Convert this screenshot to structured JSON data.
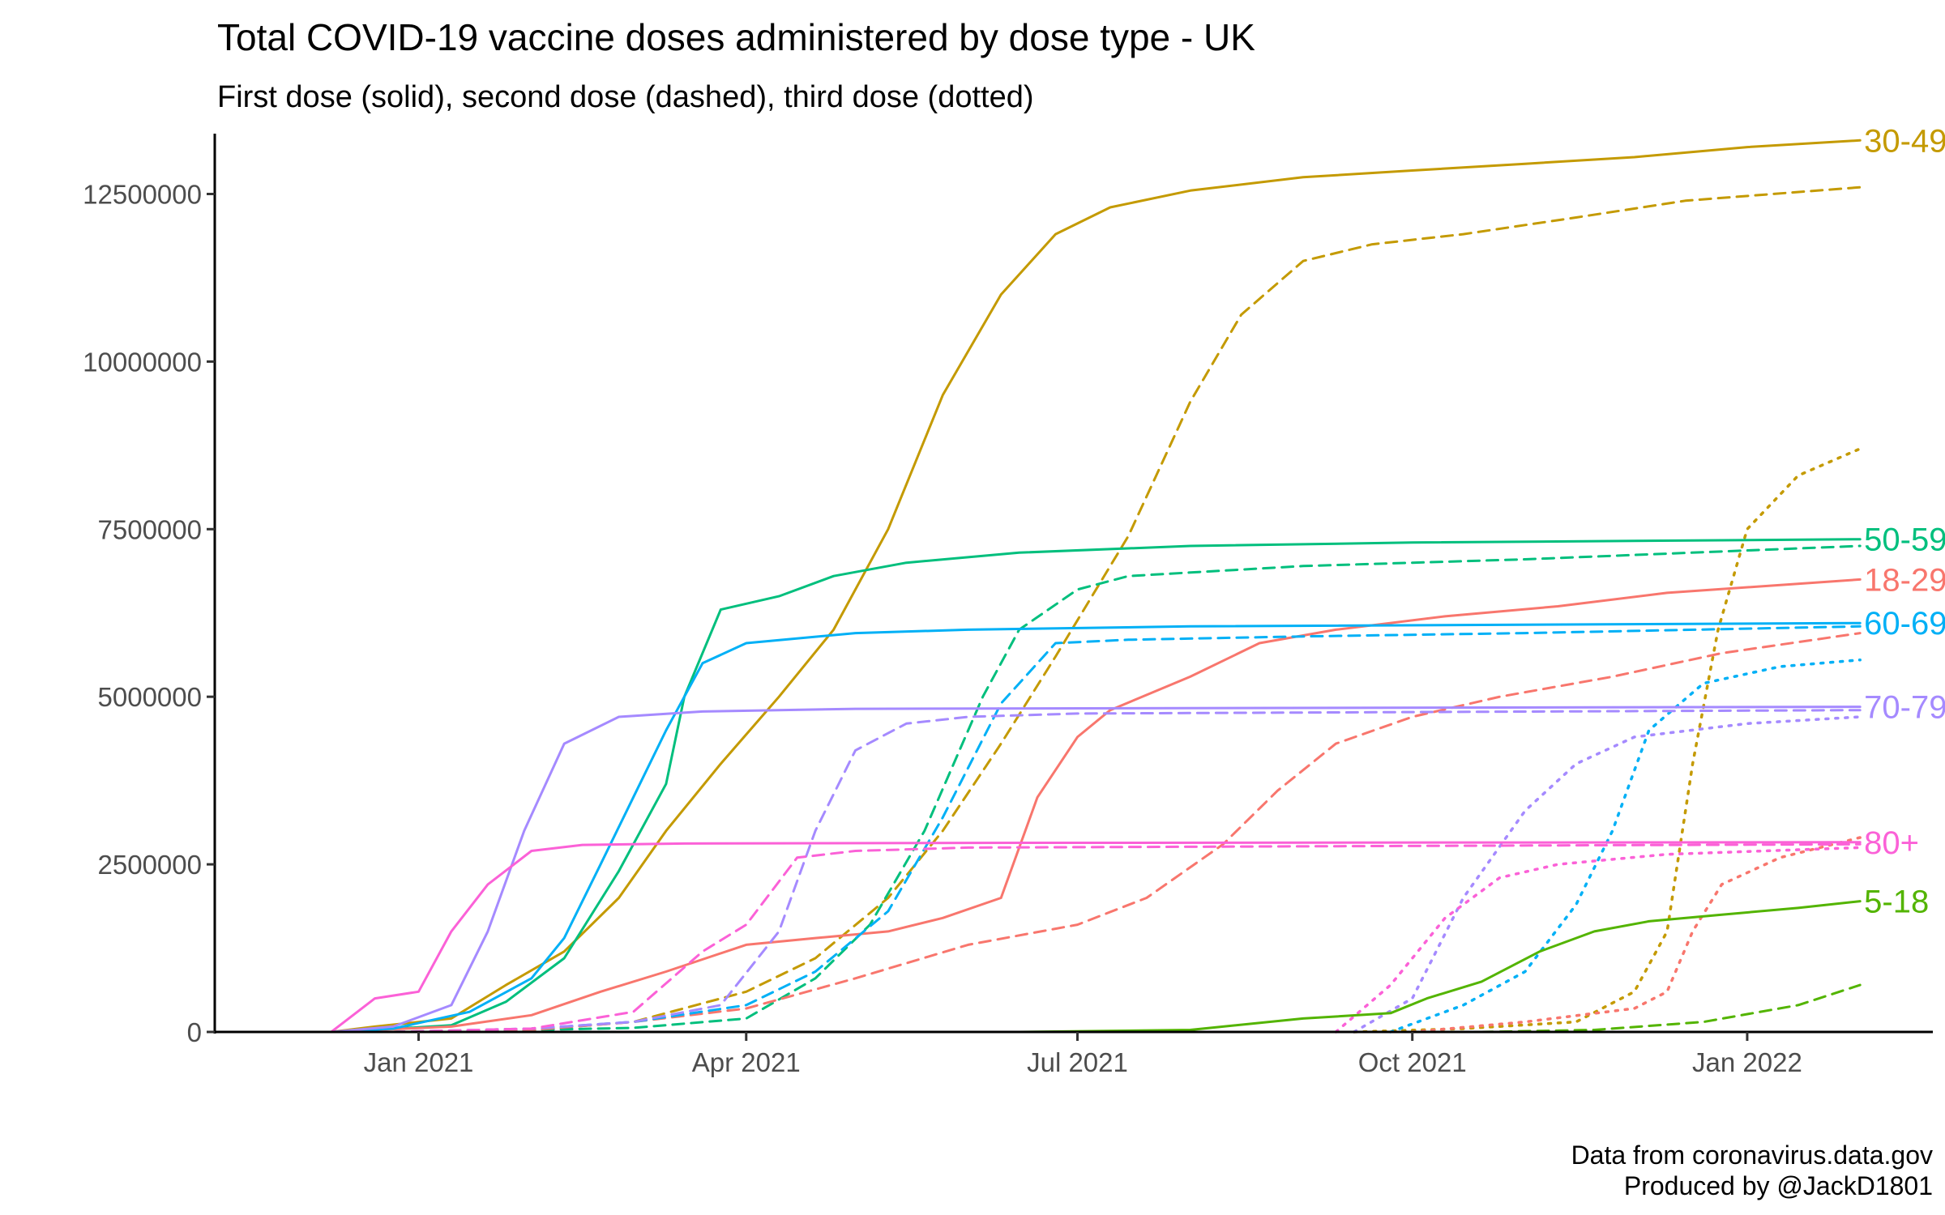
{
  "chart_data": {
    "type": "line",
    "title": "Total COVID-19 vaccine doses administered by dose type - UK",
    "subtitle": "First dose (solid), second dose (dashed), third dose (dotted)",
    "caption": [
      "Data from coronavirus.data.gov",
      "Produced by @JackD1801"
    ],
    "xlim": [
      "2020-11-06",
      "2022-02-21"
    ],
    "ylim": [
      0,
      13400000
    ],
    "x_ticks": [
      {
        "date": "2021-01-01",
        "label": "Jan 2021"
      },
      {
        "date": "2021-04-01",
        "label": "Apr 2021"
      },
      {
        "date": "2021-07-01",
        "label": "Jul 2021"
      },
      {
        "date": "2021-10-01",
        "label": "Oct 2021"
      },
      {
        "date": "2022-01-01",
        "label": "Jan 2022"
      }
    ],
    "y_ticks": [
      0,
      2500000,
      5000000,
      7500000,
      10000000,
      12500000
    ],
    "y_tick_labels": [
      "0",
      "2500000",
      "5000000",
      "7500000",
      "10000000",
      "12500000"
    ],
    "grid": false,
    "legend": "none (series labelled at right end)",
    "groups": [
      {
        "label": "30-49",
        "color": "#C49A00",
        "first": [
          [
            "2020-12-08",
            0
          ],
          [
            "2020-12-20",
            80000
          ],
          [
            "2021-01-10",
            200000
          ],
          [
            "2021-01-25",
            700000
          ],
          [
            "2021-02-10",
            1200000
          ],
          [
            "2021-02-25",
            2000000
          ],
          [
            "2021-03-10",
            3000000
          ],
          [
            "2021-03-25",
            4000000
          ],
          [
            "2021-04-10",
            5000000
          ],
          [
            "2021-04-25",
            6000000
          ],
          [
            "2021-05-10",
            7500000
          ],
          [
            "2021-05-25",
            9500000
          ],
          [
            "2021-06-10",
            11000000
          ],
          [
            "2021-06-25",
            11900000
          ],
          [
            "2021-07-10",
            12300000
          ],
          [
            "2021-08-01",
            12550000
          ],
          [
            "2021-09-01",
            12750000
          ],
          [
            "2021-10-01",
            12850000
          ],
          [
            "2021-11-01",
            12950000
          ],
          [
            "2021-12-01",
            13050000
          ],
          [
            "2022-01-01",
            13200000
          ],
          [
            "2022-02-01",
            13300000
          ]
        ],
        "second": [
          [
            "2020-12-25",
            0
          ],
          [
            "2021-02-01",
            30000
          ],
          [
            "2021-03-01",
            150000
          ],
          [
            "2021-04-01",
            600000
          ],
          [
            "2021-04-20",
            1100000
          ],
          [
            "2021-05-10",
            2000000
          ],
          [
            "2021-05-25",
            3000000
          ],
          [
            "2021-06-10",
            4300000
          ],
          [
            "2021-06-25",
            5600000
          ],
          [
            "2021-07-15",
            7400000
          ],
          [
            "2021-08-01",
            9400000
          ],
          [
            "2021-08-15",
            10700000
          ],
          [
            "2021-09-01",
            11500000
          ],
          [
            "2021-09-20",
            11750000
          ],
          [
            "2021-10-15",
            11900000
          ],
          [
            "2021-11-15",
            12150000
          ],
          [
            "2021-12-15",
            12400000
          ],
          [
            "2022-02-01",
            12600000
          ]
        ],
        "third": [
          [
            "2021-09-15",
            0
          ],
          [
            "2021-10-15",
            50000
          ],
          [
            "2021-11-15",
            150000
          ],
          [
            "2021-12-01",
            600000
          ],
          [
            "2021-12-10",
            1500000
          ],
          [
            "2021-12-17",
            4000000
          ],
          [
            "2021-12-24",
            6000000
          ],
          [
            "2022-01-01",
            7500000
          ],
          [
            "2022-01-15",
            8300000
          ],
          [
            "2022-02-01",
            8700000
          ]
        ]
      },
      {
        "label": "50-59",
        "color": "#00BF7D",
        "first": [
          [
            "2020-12-08",
            0
          ],
          [
            "2020-12-20",
            30000
          ],
          [
            "2021-01-10",
            100000
          ],
          [
            "2021-01-25",
            450000
          ],
          [
            "2021-02-10",
            1100000
          ],
          [
            "2021-02-25",
            2400000
          ],
          [
            "2021-03-10",
            3700000
          ],
          [
            "2021-03-15",
            5000000
          ],
          [
            "2021-03-25",
            6300000
          ],
          [
            "2021-04-10",
            6500000
          ],
          [
            "2021-04-25",
            6800000
          ],
          [
            "2021-05-15",
            7000000
          ],
          [
            "2021-06-15",
            7150000
          ],
          [
            "2021-08-01",
            7250000
          ],
          [
            "2021-10-01",
            7300000
          ],
          [
            "2022-02-01",
            7350000
          ]
        ],
        "second": [
          [
            "2020-12-25",
            0
          ],
          [
            "2021-02-01",
            30000
          ],
          [
            "2021-03-01",
            60000
          ],
          [
            "2021-04-01",
            200000
          ],
          [
            "2021-04-20",
            800000
          ],
          [
            "2021-05-05",
            1600000
          ],
          [
            "2021-05-20",
            3000000
          ],
          [
            "2021-06-05",
            5000000
          ],
          [
            "2021-06-15",
            6000000
          ],
          [
            "2021-07-01",
            6600000
          ],
          [
            "2021-07-15",
            6800000
          ],
          [
            "2021-09-01",
            6950000
          ],
          [
            "2021-11-01",
            7050000
          ],
          [
            "2022-02-01",
            7250000
          ]
        ],
        "third": []
      },
      {
        "label": "18-29",
        "color": "#F8766D",
        "first": [
          [
            "2020-12-08",
            0
          ],
          [
            "2021-01-10",
            80000
          ],
          [
            "2021-02-01",
            250000
          ],
          [
            "2021-02-20",
            600000
          ],
          [
            "2021-03-10",
            900000
          ],
          [
            "2021-04-01",
            1300000
          ],
          [
            "2021-04-20",
            1400000
          ],
          [
            "2021-05-10",
            1500000
          ],
          [
            "2021-05-25",
            1700000
          ],
          [
            "2021-06-10",
            2000000
          ],
          [
            "2021-06-20",
            3500000
          ],
          [
            "2021-07-01",
            4400000
          ],
          [
            "2021-07-10",
            4800000
          ],
          [
            "2021-08-01",
            5300000
          ],
          [
            "2021-08-20",
            5800000
          ],
          [
            "2021-09-10",
            6000000
          ],
          [
            "2021-10-10",
            6200000
          ],
          [
            "2021-11-10",
            6350000
          ],
          [
            "2021-12-10",
            6550000
          ],
          [
            "2022-02-01",
            6750000
          ]
        ],
        "second": [
          [
            "2020-12-25",
            0
          ],
          [
            "2021-02-01",
            30000
          ],
          [
            "2021-03-01",
            150000
          ],
          [
            "2021-04-01",
            350000
          ],
          [
            "2021-05-01",
            800000
          ],
          [
            "2021-06-01",
            1300000
          ],
          [
            "2021-07-01",
            1600000
          ],
          [
            "2021-07-20",
            2000000
          ],
          [
            "2021-08-10",
            2800000
          ],
          [
            "2021-08-25",
            3600000
          ],
          [
            "2021-09-10",
            4300000
          ],
          [
            "2021-10-01",
            4700000
          ],
          [
            "2021-10-25",
            5000000
          ],
          [
            "2021-11-25",
            5300000
          ],
          [
            "2021-12-25",
            5650000
          ],
          [
            "2022-02-01",
            5950000
          ]
        ],
        "third": [
          [
            "2021-10-01",
            0
          ],
          [
            "2021-11-01",
            150000
          ],
          [
            "2021-12-01",
            350000
          ],
          [
            "2021-12-10",
            600000
          ],
          [
            "2021-12-17",
            1500000
          ],
          [
            "2021-12-25",
            2200000
          ],
          [
            "2022-01-10",
            2600000
          ],
          [
            "2022-02-01",
            2900000
          ]
        ]
      },
      {
        "label": "60-69",
        "color": "#00B0F6",
        "first": [
          [
            "2020-12-08",
            0
          ],
          [
            "2020-12-25",
            50000
          ],
          [
            "2021-01-15",
            300000
          ],
          [
            "2021-02-01",
            800000
          ],
          [
            "2021-02-10",
            1400000
          ],
          [
            "2021-02-20",
            2500000
          ],
          [
            "2021-03-01",
            3500000
          ],
          [
            "2021-03-10",
            4500000
          ],
          [
            "2021-03-20",
            5500000
          ],
          [
            "2021-04-01",
            5800000
          ],
          [
            "2021-05-01",
            5950000
          ],
          [
            "2021-06-01",
            6000000
          ],
          [
            "2021-08-01",
            6050000
          ],
          [
            "2022-02-01",
            6100000
          ]
        ],
        "second": [
          [
            "2020-12-25",
            0
          ],
          [
            "2021-02-01",
            50000
          ],
          [
            "2021-03-01",
            150000
          ],
          [
            "2021-04-01",
            400000
          ],
          [
            "2021-04-20",
            900000
          ],
          [
            "2021-05-10",
            1800000
          ],
          [
            "2021-05-25",
            3200000
          ],
          [
            "2021-06-10",
            4900000
          ],
          [
            "2021-06-25",
            5800000
          ],
          [
            "2021-07-15",
            5850000
          ],
          [
            "2021-09-01",
            5900000
          ],
          [
            "2021-11-01",
            5950000
          ],
          [
            "2022-02-01",
            6050000
          ]
        ],
        "third": [
          [
            "2021-09-25",
            0
          ],
          [
            "2021-10-15",
            400000
          ],
          [
            "2021-11-01",
            900000
          ],
          [
            "2021-11-15",
            1900000
          ],
          [
            "2021-11-25",
            3000000
          ],
          [
            "2021-12-05",
            4500000
          ],
          [
            "2021-12-20",
            5200000
          ],
          [
            "2022-01-10",
            5450000
          ],
          [
            "2022-02-01",
            5550000
          ]
        ]
      },
      {
        "label": "70-79",
        "color": "#A58AFF",
        "first": [
          [
            "2020-12-08",
            0
          ],
          [
            "2020-12-25",
            80000
          ],
          [
            "2021-01-10",
            400000
          ],
          [
            "2021-01-20",
            1500000
          ],
          [
            "2021-01-30",
            3000000
          ],
          [
            "2021-02-10",
            4300000
          ],
          [
            "2021-02-25",
            4700000
          ],
          [
            "2021-03-20",
            4780000
          ],
          [
            "2021-05-01",
            4820000
          ],
          [
            "2022-02-01",
            4850000
          ]
        ],
        "second": [
          [
            "2020-12-25",
            0
          ],
          [
            "2021-02-01",
            50000
          ],
          [
            "2021-03-01",
            150000
          ],
          [
            "2021-03-25",
            400000
          ],
          [
            "2021-04-10",
            1500000
          ],
          [
            "2021-04-20",
            3000000
          ],
          [
            "2021-05-01",
            4200000
          ],
          [
            "2021-05-15",
            4600000
          ],
          [
            "2021-06-01",
            4700000
          ],
          [
            "2021-07-01",
            4750000
          ],
          [
            "2022-02-01",
            4800000
          ]
        ],
        "third": [
          [
            "2021-09-15",
            0
          ],
          [
            "2021-10-01",
            500000
          ],
          [
            "2021-10-15",
            2000000
          ],
          [
            "2021-11-01",
            3300000
          ],
          [
            "2021-11-15",
            4000000
          ],
          [
            "2021-12-01",
            4400000
          ],
          [
            "2022-01-01",
            4600000
          ],
          [
            "2022-02-01",
            4700000
          ]
        ]
      },
      {
        "label": "80+",
        "color": "#FB61D7",
        "first": [
          [
            "2020-12-08",
            0
          ],
          [
            "2020-12-20",
            500000
          ],
          [
            "2021-01-01",
            600000
          ],
          [
            "2021-01-10",
            1500000
          ],
          [
            "2021-01-20",
            2200000
          ],
          [
            "2021-02-01",
            2700000
          ],
          [
            "2021-02-15",
            2790000
          ],
          [
            "2021-03-15",
            2810000
          ],
          [
            "2021-06-01",
            2820000
          ],
          [
            "2022-02-01",
            2830000
          ]
        ],
        "second": [
          [
            "2020-12-25",
            0
          ],
          [
            "2021-02-01",
            50000
          ],
          [
            "2021-03-01",
            300000
          ],
          [
            "2021-03-20",
            1200000
          ],
          [
            "2021-04-01",
            1600000
          ],
          [
            "2021-04-15",
            2600000
          ],
          [
            "2021-05-01",
            2700000
          ],
          [
            "2021-06-01",
            2750000
          ],
          [
            "2022-02-01",
            2800000
          ]
        ],
        "third": [
          [
            "2021-09-10",
            0
          ],
          [
            "2021-09-25",
            700000
          ],
          [
            "2021-10-10",
            1700000
          ],
          [
            "2021-10-25",
            2300000
          ],
          [
            "2021-11-10",
            2500000
          ],
          [
            "2021-12-10",
            2650000
          ],
          [
            "2022-02-01",
            2750000
          ]
        ]
      },
      {
        "label": "5-18",
        "color": "#53B400",
        "first": [
          [
            "2021-06-15",
            0
          ],
          [
            "2021-08-01",
            30000
          ],
          [
            "2021-09-01",
            200000
          ],
          [
            "2021-09-25",
            280000
          ],
          [
            "2021-10-05",
            500000
          ],
          [
            "2021-10-20",
            750000
          ],
          [
            "2021-11-05",
            1200000
          ],
          [
            "2021-11-20",
            1500000
          ],
          [
            "2021-12-05",
            1650000
          ],
          [
            "2021-12-25",
            1750000
          ],
          [
            "2022-01-15",
            1850000
          ],
          [
            "2022-02-01",
            1950000
          ]
        ],
        "second": [
          [
            "2021-10-20",
            0
          ],
          [
            "2021-11-20",
            30000
          ],
          [
            "2021-12-20",
            150000
          ],
          [
            "2022-01-15",
            400000
          ],
          [
            "2022-02-01",
            700000
          ]
        ],
        "third": []
      }
    ]
  }
}
